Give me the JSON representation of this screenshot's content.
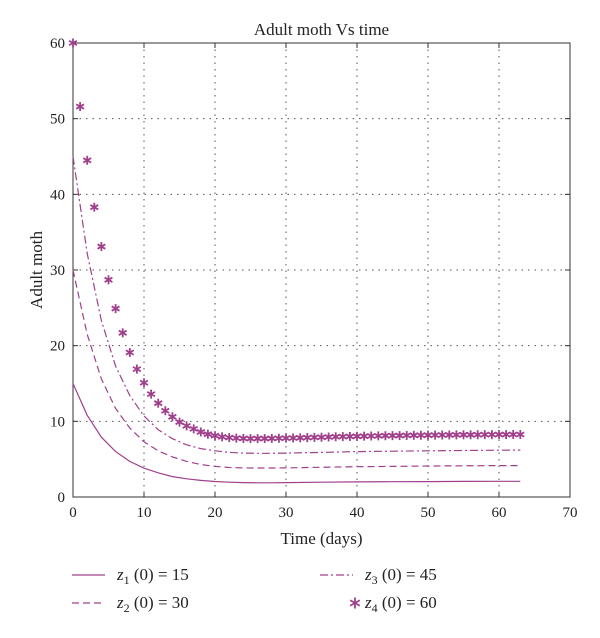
{
  "chart_data": {
    "type": "line",
    "title": "Adult moth Vs time",
    "xlabel": "Time (days)",
    "ylabel": "Adult moth",
    "xlim": [
      0,
      70
    ],
    "ylim": [
      0,
      60
    ],
    "xticks": [
      0,
      10,
      20,
      30,
      40,
      50,
      60,
      70
    ],
    "yticks": [
      0,
      10,
      20,
      30,
      40,
      50,
      60
    ],
    "grid": true,
    "legend_position": "bottom",
    "color": "#a0408c",
    "series": [
      {
        "name": "z1 (0) = 15",
        "legend": {
          "var": "z",
          "sub": "1",
          "rest": " (0) = 15"
        },
        "style": "solid",
        "x": [
          0,
          2,
          4,
          6,
          8,
          10,
          12,
          14,
          16,
          18,
          20,
          22,
          24,
          26,
          28,
          30,
          35,
          40,
          45,
          50,
          55,
          60,
          63
        ],
        "y": [
          15,
          10.8,
          7.9,
          6.0,
          4.7,
          3.8,
          3.2,
          2.7,
          2.4,
          2.2,
          2.05,
          1.95,
          1.9,
          1.88,
          1.88,
          1.9,
          1.95,
          2.0,
          2.02,
          2.04,
          2.06,
          2.07,
          2.08
        ]
      },
      {
        "name": "z2 (0) = 30",
        "legend": {
          "var": "z",
          "sub": "2",
          "rest": " (0) = 30"
        },
        "style": "dashed",
        "x": [
          0,
          2,
          4,
          6,
          8,
          10,
          12,
          14,
          16,
          18,
          20,
          22,
          24,
          26,
          28,
          30,
          35,
          40,
          45,
          50,
          55,
          60,
          63
        ],
        "y": [
          30,
          21.5,
          15.6,
          11.7,
          9.1,
          7.3,
          6.1,
          5.3,
          4.7,
          4.3,
          4.05,
          3.9,
          3.85,
          3.83,
          3.83,
          3.85,
          3.92,
          4.0,
          4.05,
          4.1,
          4.12,
          4.15,
          4.15
        ]
      },
      {
        "name": "z3 (0) = 45",
        "legend": {
          "var": "z",
          "sub": "3",
          "rest": " (0) = 45"
        },
        "style": "dashdot",
        "x": [
          0,
          2,
          4,
          6,
          8,
          10,
          12,
          14,
          16,
          18,
          20,
          22,
          24,
          26,
          28,
          30,
          35,
          40,
          45,
          50,
          55,
          60,
          63
        ],
        "y": [
          45,
          32.2,
          23.3,
          17.3,
          13.4,
          10.7,
          8.9,
          7.7,
          6.9,
          6.4,
          6.1,
          5.9,
          5.8,
          5.78,
          5.78,
          5.8,
          5.9,
          6.0,
          6.05,
          6.1,
          6.15,
          6.18,
          6.2
        ]
      },
      {
        "name": "z4 (0) = 60",
        "legend": {
          "var": "z",
          "sub": "4",
          "rest": " (0) = 60"
        },
        "style": "markers",
        "x": [
          0,
          1,
          2,
          3,
          4,
          5,
          6,
          7,
          8,
          9,
          10,
          11,
          12,
          13,
          14,
          15,
          16,
          17,
          18,
          19,
          20,
          21,
          22,
          23,
          24,
          25,
          26,
          27,
          28,
          29,
          30,
          31,
          32,
          33,
          34,
          35,
          36,
          37,
          38,
          39,
          40,
          41,
          42,
          43,
          44,
          45,
          46,
          47,
          48,
          49,
          50,
          51,
          52,
          53,
          54,
          55,
          56,
          57,
          58,
          59,
          60,
          61,
          62,
          63
        ],
        "y": [
          60,
          51.6,
          44.5,
          38.3,
          33.1,
          28.7,
          24.9,
          21.7,
          19.1,
          16.9,
          15.1,
          13.6,
          12.4,
          11.4,
          10.6,
          9.9,
          9.4,
          9.0,
          8.6,
          8.3,
          8.1,
          7.95,
          7.85,
          7.78,
          7.74,
          7.72,
          7.72,
          7.72,
          7.74,
          7.76,
          7.78,
          7.8,
          7.82,
          7.85,
          7.88,
          7.9,
          7.93,
          7.96,
          7.98,
          8.0,
          8.02,
          8.04,
          8.06,
          8.08,
          8.1,
          8.11,
          8.12,
          8.14,
          8.15,
          8.16,
          8.17,
          8.18,
          8.19,
          8.2,
          8.21,
          8.22,
          8.22,
          8.23,
          8.24,
          8.24,
          8.25,
          8.25,
          8.26,
          8.26
        ]
      }
    ]
  }
}
